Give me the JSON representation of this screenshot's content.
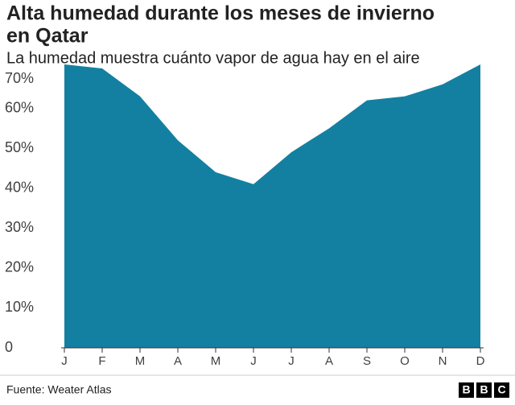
{
  "chart_data": {
    "type": "area",
    "title": [
      "Alta humedad durante los meses de invierno",
      "en Qatar"
    ],
    "subtitle": "La humedad muestra cuánto vapor de agua hay en el aire",
    "categories": [
      "J",
      "F",
      "M",
      "A",
      "M",
      "J",
      "J",
      "A",
      "S",
      "O",
      "N",
      "D"
    ],
    "values": [
      71,
      70,
      63,
      52,
      44,
      41,
      49,
      55,
      62,
      63,
      66,
      71
    ],
    "color": "#1380a1",
    "ylim": [
      0,
      71
    ],
    "yticks": [
      0,
      {
        "value": 10,
        "label": "10%"
      },
      {
        "value": 20,
        "label": "20%"
      },
      {
        "value": 30,
        "label": "30%"
      },
      {
        "value": 40,
        "label": "40%"
      },
      {
        "value": 50,
        "label": "50%"
      },
      {
        "value": 60,
        "label": "60%"
      },
      {
        "value": 70,
        "label": "70%"
      }
    ],
    "source": "Fuente: Weater Atlas",
    "logo": [
      "B",
      "B",
      "C"
    ]
  }
}
